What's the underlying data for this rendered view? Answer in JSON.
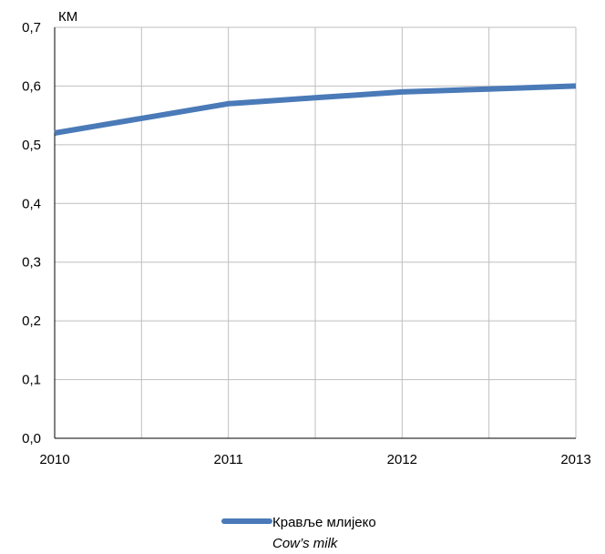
{
  "chart_data": {
    "type": "line",
    "unit_label": "КМ",
    "x": [
      2010,
      2010.5,
      2011,
      2011.5,
      2012,
      2012.5,
      2013
    ],
    "x_ticks": [
      "2010",
      "2011",
      "2012",
      "2013"
    ],
    "y_ticks": [
      "0,0",
      "0,1",
      "0,2",
      "0,3",
      "0,4",
      "0,5",
      "0,6",
      "0,7"
    ],
    "ylim": [
      0,
      0.7
    ],
    "xlim": [
      2010,
      2013
    ],
    "grid": true,
    "legend_position": "bottom-center",
    "series": [
      {
        "name": "Крављe млијеко",
        "name_en": "Cow’s milk",
        "color": "#4a7ab8",
        "values": [
          0.52,
          0.545,
          0.57,
          0.58,
          0.59,
          0.595,
          0.6
        ]
      }
    ]
  }
}
